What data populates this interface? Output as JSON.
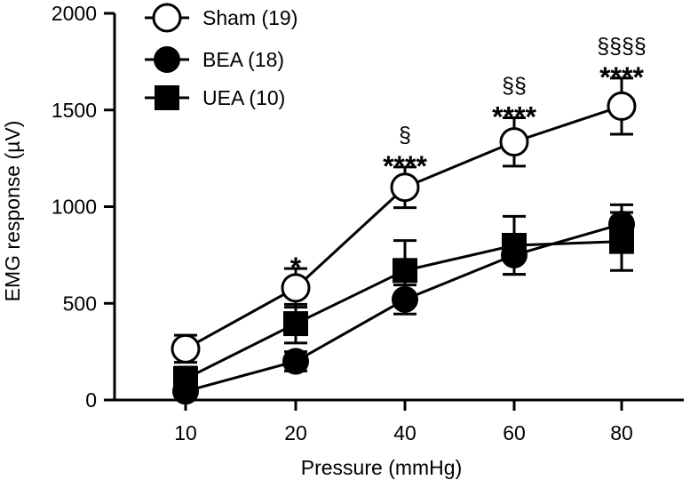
{
  "chart_data": {
    "type": "line",
    "xlabel": "Pressure (mmHg)",
    "ylabel": "EMG response (µV)",
    "categories": [
      "10",
      "20",
      "40",
      "60",
      "80"
    ],
    "ylim": [
      0,
      2000
    ],
    "yticks": [
      "0",
      "500",
      "1000",
      "1500",
      "2000"
    ],
    "grid": false,
    "legend_position": "top-left",
    "series": [
      {
        "name": "Sham (19)",
        "marker": "circle-open",
        "color": "#000000",
        "values": [
          265,
          580,
          1100,
          1335,
          1520
        ],
        "errors": [
          70,
          100,
          105,
          125,
          145
        ]
      },
      {
        "name": "BEA (18)",
        "marker": "circle-filled",
        "color": "#000000",
        "values": [
          45,
          200,
          520,
          750,
          910
        ],
        "errors": [
          20,
          50,
          75,
          100,
          100
        ]
      },
      {
        "name": "UEA (10)",
        "marker": "square-filled",
        "color": "#000000",
        "values": [
          110,
          395,
          670,
          800,
          820
        ],
        "errors": [
          60,
          100,
          155,
          150,
          150
        ]
      }
    ],
    "annotations": [
      {
        "category": "20",
        "stars": "*",
        "sections": ""
      },
      {
        "category": "40",
        "stars": "****",
        "sections": "§"
      },
      {
        "category": "60",
        "stars": "****",
        "sections": "§§"
      },
      {
        "category": "80",
        "stars": "****",
        "sections": "§§§§"
      }
    ]
  }
}
